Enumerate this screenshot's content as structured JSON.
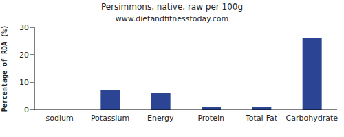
{
  "chart_data": {
    "type": "bar",
    "title": "Persimmons, native, raw per 100g",
    "subtitle": "www.dietandfitnesstoday.com",
    "y_label": "Percentage of RDA (%)",
    "categories": [
      "sodium",
      "Potassium",
      "Energy",
      "Protein",
      "Total-Fat",
      "Carbohydrate"
    ],
    "values": [
      0,
      7,
      6,
      1,
      1,
      26
    ],
    "color": "#2b4594",
    "ylim": [
      0,
      30
    ],
    "yticks": [
      0,
      10,
      20,
      30
    ],
    "grid": false
  }
}
